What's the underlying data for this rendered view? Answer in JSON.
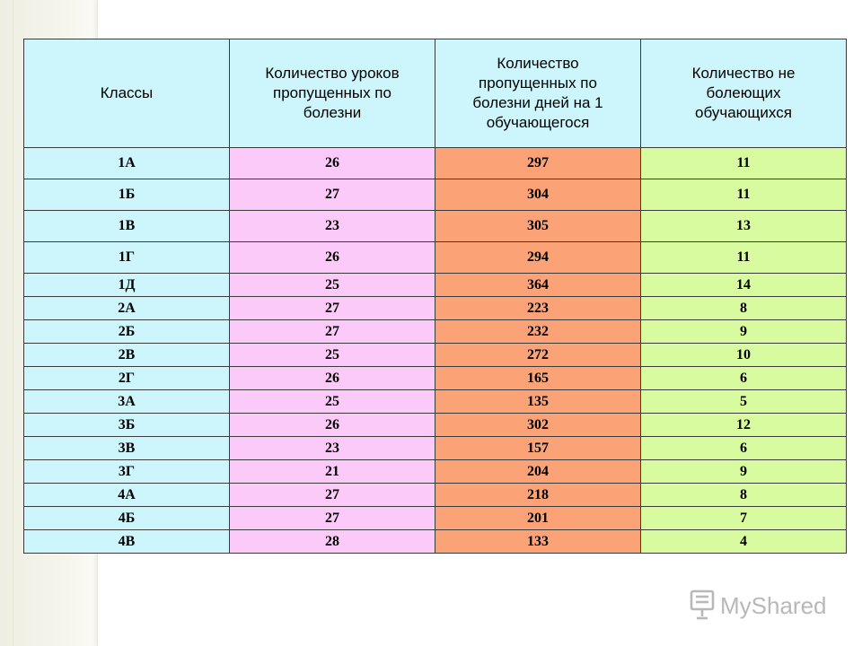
{
  "table": {
    "headers": [
      "Классы",
      "Количество уроков пропущенных по болезни",
      "Количество пропущенных по болезни дней на 1 обучающегося",
      "Количество не болеющих обучающихся"
    ],
    "rows": [
      [
        "1А",
        "26",
        "297",
        "11"
      ],
      [
        "1Б",
        "27",
        "304",
        "11"
      ],
      [
        "1В",
        "23",
        "305",
        "13"
      ],
      [
        "1Г",
        "26",
        "294",
        "11"
      ],
      [
        "1Д",
        "25",
        "364",
        "14"
      ],
      [
        "2А",
        "27",
        "223",
        "8"
      ],
      [
        "2Б",
        "27",
        "232",
        "9"
      ],
      [
        "2В",
        "25",
        "272",
        "10"
      ],
      [
        "2Г",
        "26",
        "165",
        "6"
      ],
      [
        "3А",
        "25",
        "135",
        "5"
      ],
      [
        "3Б",
        "26",
        "302",
        "12"
      ],
      [
        "3В",
        "23",
        "157",
        "6"
      ],
      [
        "3Г",
        "21",
        "204",
        "9"
      ],
      [
        "4А",
        "27",
        "218",
        "8"
      ],
      [
        "4Б",
        "27",
        "201",
        "7"
      ],
      [
        "4В",
        "28",
        "133",
        "4"
      ]
    ],
    "column_colors": [
      "#ccf5fc",
      "#fccaf9",
      "#fba276",
      "#d8fba0"
    ]
  },
  "watermark": {
    "text": "MyShared",
    "icon": "presentation-board-icon"
  }
}
